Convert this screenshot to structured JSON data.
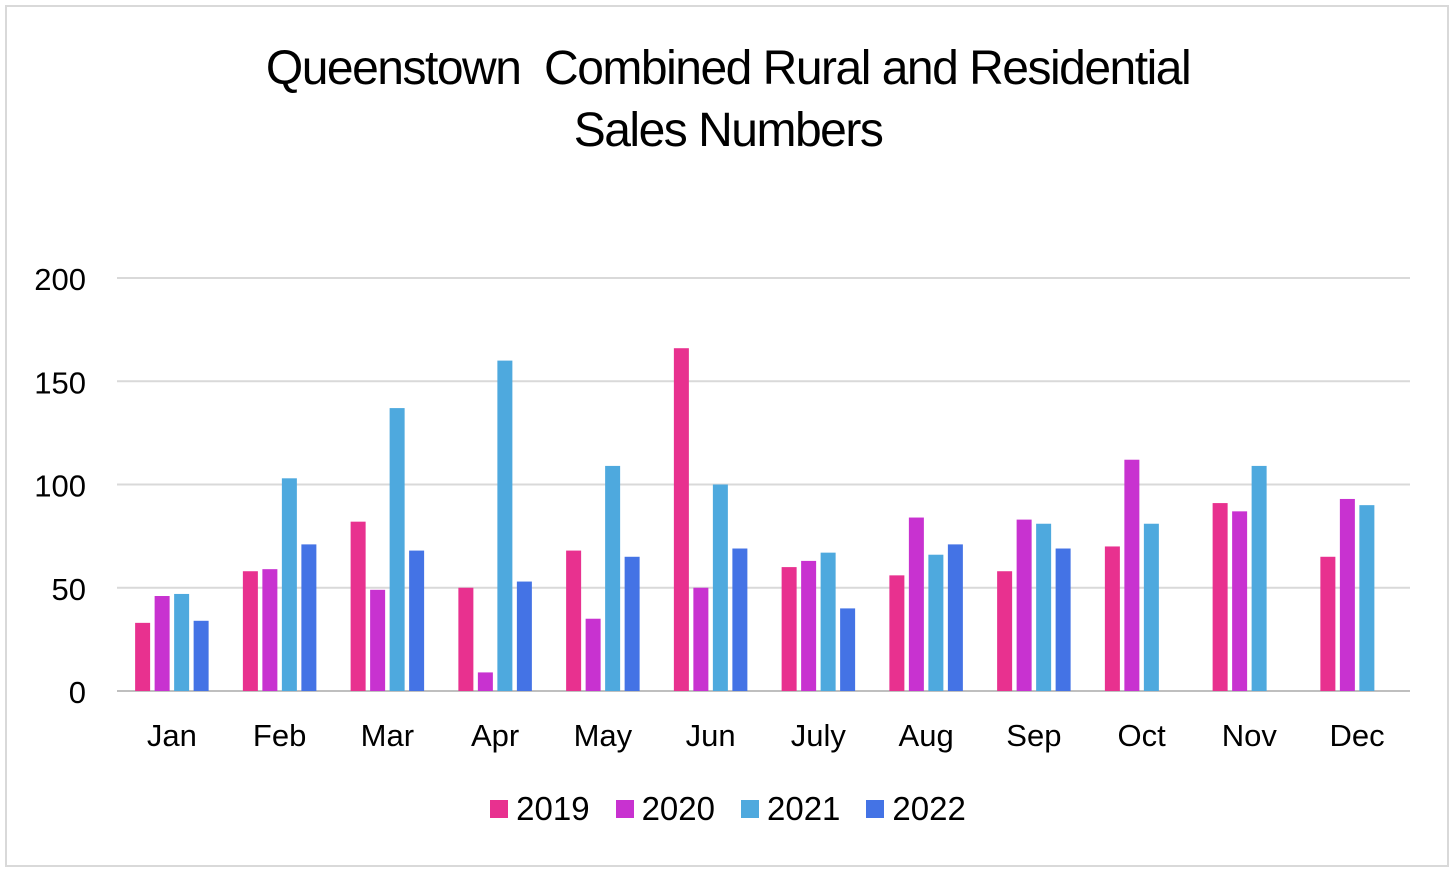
{
  "chart_data": {
    "type": "bar",
    "title_lines": [
      "Queenstown  Combined Rural and Residential",
      "Sales Numbers"
    ],
    "xlabel": "",
    "ylabel": "",
    "ylim": [
      0,
      200
    ],
    "yticks": [
      0,
      50,
      100,
      150,
      200
    ],
    "ytick_labels": [
      "0",
      "50",
      "100",
      "150",
      "200"
    ],
    "grid": true,
    "legend_position": "bottom",
    "categories": [
      "Jan",
      "Feb",
      "Mar",
      "Apr",
      "May",
      "Jun",
      "July",
      "Aug",
      "Sep",
      "Oct",
      "Nov",
      "Dec"
    ],
    "series": [
      {
        "name": "2019",
        "color": "#e8318f",
        "values": [
          33,
          58,
          82,
          50,
          68,
          166,
          60,
          56,
          58,
          70,
          91,
          65
        ]
      },
      {
        "name": "2020",
        "color": "#c832d0",
        "values": [
          46,
          59,
          49,
          9,
          35,
          50,
          63,
          84,
          83,
          112,
          87,
          93
        ]
      },
      {
        "name": "2021",
        "color": "#4ea9de",
        "values": [
          47,
          103,
          137,
          160,
          109,
          100,
          67,
          66,
          81,
          81,
          109,
          90
        ]
      },
      {
        "name": "2022",
        "color": "#4473e5",
        "values": [
          34,
          71,
          68,
          53,
          65,
          69,
          40,
          71,
          69,
          null,
          null,
          null
        ]
      }
    ]
  }
}
